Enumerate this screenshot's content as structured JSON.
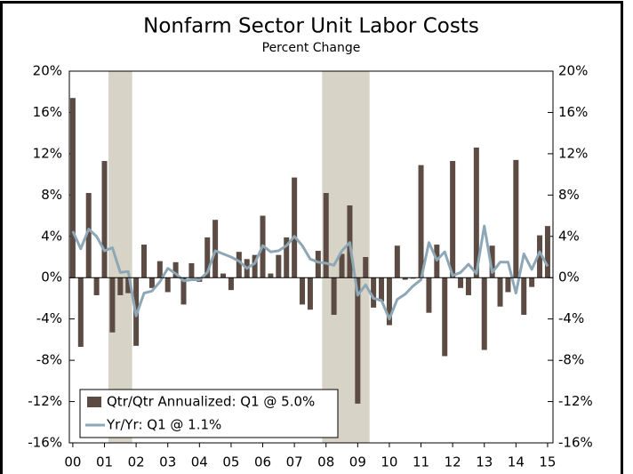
{
  "chart_data": {
    "type": "bar",
    "title": "Nonfarm Sector Unit Labor Costs",
    "subtitle": "Percent Change",
    "x": [
      2000,
      2000.25,
      2000.5,
      2000.75,
      2001,
      2001.25,
      2001.5,
      2001.75,
      2002,
      2002.25,
      2002.5,
      2002.75,
      2003,
      2003.25,
      2003.5,
      2003.75,
      2004,
      2004.25,
      2004.5,
      2004.75,
      2005,
      2005.25,
      2005.5,
      2005.75,
      2006,
      2006.25,
      2006.5,
      2006.75,
      2007,
      2007.25,
      2007.5,
      2007.75,
      2008,
      2008.25,
      2008.5,
      2008.75,
      2009,
      2009.25,
      2009.5,
      2009.75,
      2010,
      2010.25,
      2010.5,
      2010.75,
      2011,
      2011.25,
      2011.5,
      2011.75,
      2012,
      2012.25,
      2012.5,
      2012.75,
      2013,
      2013.25,
      2013.5,
      2013.75,
      2014,
      2014.25,
      2014.5,
      2014.75,
      2015
    ],
    "series": [
      {
        "name": "Qtr/Qtr Annualized: Q1 @ 5.0%",
        "type": "bar",
        "color": "#5b4b43",
        "values": [
          17.4,
          -6.7,
          8.2,
          -1.7,
          11.3,
          -5.3,
          -1.7,
          -1.5,
          -6.6,
          3.2,
          -1.0,
          1.6,
          -1.4,
          1.5,
          -2.6,
          1.4,
          -0.4,
          3.9,
          5.6,
          0.4,
          -1.2,
          2.5,
          1.8,
          2.2,
          6.0,
          0.4,
          2.2,
          3.9,
          9.7,
          -2.6,
          -3.1,
          2.6,
          8.2,
          -3.6,
          2.3,
          7.0,
          -12.2,
          2.0,
          -2.9,
          -2.3,
          -4.6,
          3.1,
          -0.2,
          -0.1,
          10.9,
          -3.4,
          3.2,
          -7.6,
          11.3,
          -1.0,
          -1.7,
          12.6,
          -7.0,
          3.1,
          -2.8,
          -1.4,
          11.4,
          -3.6,
          -0.9,
          4.1,
          5.0
        ]
      },
      {
        "name": "Yr/Yr: Q1 @ 1.1%",
        "type": "line",
        "color": "#8ea7b6",
        "values": [
          4.5,
          2.8,
          4.7,
          4.0,
          2.6,
          2.9,
          0.5,
          0.6,
          -3.7,
          -1.5,
          -1.3,
          -0.4,
          0.9,
          0.4,
          -0.3,
          -0.2,
          -0.2,
          0.5,
          2.6,
          2.3,
          2.0,
          1.6,
          0.9,
          1.4,
          3.1,
          2.5,
          2.6,
          3.1,
          4.0,
          3.1,
          1.8,
          1.5,
          1.4,
          1.2,
          2.6,
          3.4,
          -1.7,
          -0.7,
          -2.0,
          -2.2,
          -4.0,
          -2.1,
          -1.6,
          -0.8,
          -0.2,
          3.4,
          1.7,
          2.5,
          0.2,
          0.5,
          1.3,
          0.4,
          5.0,
          0.5,
          1.5,
          1.5,
          -1.5,
          2.3,
          0.8,
          2.5,
          1.1
        ]
      }
    ],
    "shaded_regions": [
      [
        2001.125,
        2001.875
      ],
      [
        2007.875,
        2009.375
      ]
    ],
    "shade_color": "#d7d3c6",
    "xlim": [
      1999.89,
      2015.17
    ],
    "xticks": [
      {
        "value": 2000,
        "label": "00"
      },
      {
        "value": 2001,
        "label": "01"
      },
      {
        "value": 2002,
        "label": "02"
      },
      {
        "value": 2003,
        "label": "03"
      },
      {
        "value": 2004,
        "label": "04"
      },
      {
        "value": 2005,
        "label": "05"
      },
      {
        "value": 2006,
        "label": "06"
      },
      {
        "value": 2007,
        "label": "07"
      },
      {
        "value": 2008,
        "label": "08"
      },
      {
        "value": 2009,
        "label": "09"
      },
      {
        "value": 2010,
        "label": "10"
      },
      {
        "value": 2011,
        "label": "11"
      },
      {
        "value": 2012,
        "label": "12"
      },
      {
        "value": 2013,
        "label": "13"
      },
      {
        "value": 2014,
        "label": "14"
      },
      {
        "value": 2015,
        "label": "15"
      }
    ],
    "ylim": [
      -16,
      20
    ],
    "yticks": [
      {
        "value": -16,
        "label": "-16%"
      },
      {
        "value": -12,
        "label": "-12%"
      },
      {
        "value": -8,
        "label": "-8%"
      },
      {
        "value": -4,
        "label": "-4%"
      },
      {
        "value": 0,
        "label": "0%"
      },
      {
        "value": 4,
        "label": "4%"
      },
      {
        "value": 8,
        "label": "8%"
      },
      {
        "value": 12,
        "label": "12%"
      },
      {
        "value": 16,
        "label": "16%"
      },
      {
        "value": 20,
        "label": "20%"
      }
    ],
    "y2lim": [
      -16,
      20
    ],
    "y2ticks": [
      {
        "value": -16,
        "label": "-16%"
      },
      {
        "value": -12,
        "label": "-12%"
      },
      {
        "value": -8,
        "label": "-8%"
      },
      {
        "value": -4,
        "label": "-4%"
      },
      {
        "value": 0,
        "label": "0%"
      },
      {
        "value": 4,
        "label": "4%"
      },
      {
        "value": 8,
        "label": "8%"
      },
      {
        "value": 12,
        "label": "12%"
      },
      {
        "value": 16,
        "label": "16%"
      },
      {
        "value": 20,
        "label": "20%"
      }
    ],
    "legend": "lower left"
  }
}
